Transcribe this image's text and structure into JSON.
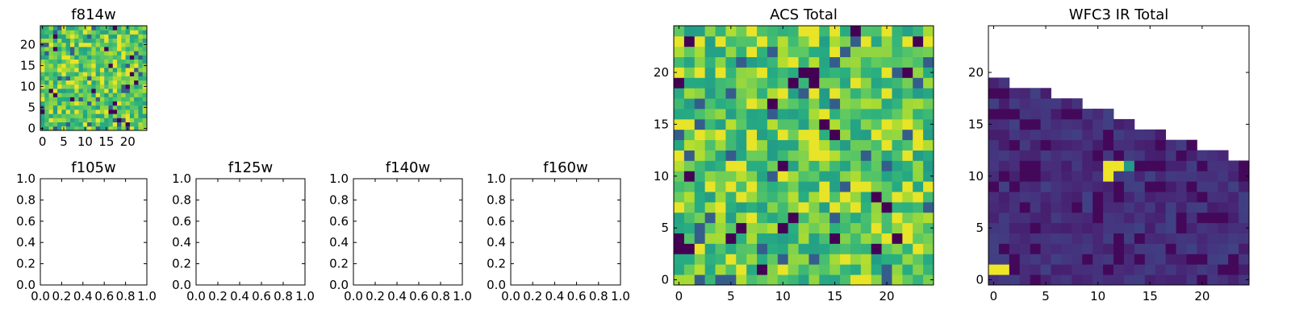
{
  "chart_data": [
    {
      "type": "heatmap",
      "title": "f814w",
      "n": 25,
      "colormap": "viridis",
      "data_kind": "acs_noise",
      "seed": 11,
      "vmin": 0,
      "vmax": 1,
      "xlim": [
        -0.5,
        24.5
      ],
      "ylim": [
        -0.5,
        24.5
      ],
      "xticks": [
        0,
        5,
        10,
        15,
        20
      ],
      "yticks": [
        0,
        5,
        10,
        15,
        20
      ],
      "xtick_labels": [
        "0",
        "5",
        "10",
        "15",
        "20"
      ],
      "ytick_labels": [
        "0",
        "5",
        "10",
        "15",
        "20"
      ]
    },
    {
      "type": "heatmap",
      "title": "f105w",
      "empty": true,
      "xlim": [
        0,
        1
      ],
      "ylim": [
        0,
        1
      ],
      "xticks": [
        0,
        0.2,
        0.4,
        0.6,
        0.8,
        1.0
      ],
      "yticks": [
        0,
        0.2,
        0.4,
        0.6,
        0.8,
        1.0
      ],
      "xtick_labels": [
        "0.0",
        "0.2",
        "0.4",
        "0.6",
        "0.8",
        "1.0"
      ],
      "ytick_labels": [
        "0.0",
        "0.2",
        "0.4",
        "0.6",
        "0.8",
        "1.0"
      ]
    },
    {
      "type": "heatmap",
      "title": "f125w",
      "empty": true,
      "xlim": [
        0,
        1
      ],
      "ylim": [
        0,
        1
      ],
      "xticks": [
        0,
        0.2,
        0.4,
        0.6,
        0.8,
        1.0
      ],
      "yticks": [
        0,
        0.2,
        0.4,
        0.6,
        0.8,
        1.0
      ],
      "xtick_labels": [
        "0.0",
        "0.2",
        "0.4",
        "0.6",
        "0.8",
        "1.0"
      ],
      "ytick_labels": [
        "0.0",
        "0.2",
        "0.4",
        "0.6",
        "0.8",
        "1.0"
      ]
    },
    {
      "type": "heatmap",
      "title": "f140w",
      "empty": true,
      "xlim": [
        0,
        1
      ],
      "ylim": [
        0,
        1
      ],
      "xticks": [
        0,
        0.2,
        0.4,
        0.6,
        0.8,
        1.0
      ],
      "yticks": [
        0,
        0.2,
        0.4,
        0.6,
        0.8,
        1.0
      ],
      "xtick_labels": [
        "0.0",
        "0.2",
        "0.4",
        "0.6",
        "0.8",
        "1.0"
      ],
      "ytick_labels": [
        "0.0",
        "0.2",
        "0.4",
        "0.6",
        "0.8",
        "1.0"
      ]
    },
    {
      "type": "heatmap",
      "title": "f160w",
      "empty": true,
      "xlim": [
        0,
        1
      ],
      "ylim": [
        0,
        1
      ],
      "xticks": [
        0,
        0.2,
        0.4,
        0.6,
        0.8,
        1.0
      ],
      "yticks": [
        0,
        0.2,
        0.4,
        0.6,
        0.8,
        1.0
      ],
      "xtick_labels": [
        "0.0",
        "0.2",
        "0.4",
        "0.6",
        "0.8",
        "1.0"
      ],
      "ytick_labels": [
        "0.0",
        "0.2",
        "0.4",
        "0.6",
        "0.8",
        "1.0"
      ]
    },
    {
      "type": "heatmap",
      "title": "ACS Total",
      "n": 25,
      "colormap": "viridis",
      "data_kind": "acs_noise",
      "seed": 7,
      "vmin": 0,
      "vmax": 1,
      "xlim": [
        -0.5,
        24.5
      ],
      "ylim": [
        -0.5,
        24.5
      ],
      "xticks": [
        0,
        5,
        10,
        15,
        20
      ],
      "yticks": [
        0,
        5,
        10,
        15,
        20
      ],
      "xtick_labels": [
        "0",
        "5",
        "10",
        "15",
        "20"
      ],
      "ytick_labels": [
        "0",
        "5",
        "10",
        "15",
        "20"
      ]
    },
    {
      "type": "heatmap",
      "title": "WFC3 IR Total",
      "n": 25,
      "colormap": "viridis",
      "data_kind": "wfc3_staircase",
      "seed": 3,
      "vmin": 0,
      "vmax": 1,
      "boundary_heights": [
        19,
        19,
        18,
        18,
        18,
        18,
        17,
        17,
        17,
        16,
        16,
        16,
        15,
        15,
        14,
        14,
        14,
        13,
        13,
        13,
        12,
        12,
        12,
        11,
        11
      ],
      "hot_cells": [
        [
          11,
          10
        ],
        [
          11,
          11
        ],
        [
          12,
          11
        ],
        [
          13,
          11
        ],
        [
          0,
          1
        ],
        [
          1,
          1
        ]
      ],
      "xlim": [
        -0.5,
        24.5
      ],
      "ylim": [
        -0.5,
        24.5
      ],
      "xticks": [
        0,
        5,
        10,
        15,
        20
      ],
      "yticks": [
        0,
        5,
        10,
        15,
        20
      ],
      "xtick_labels": [
        "0",
        "5",
        "10",
        "15",
        "20"
      ],
      "ytick_labels": [
        "0",
        "5",
        "10",
        "15",
        "20"
      ]
    }
  ]
}
